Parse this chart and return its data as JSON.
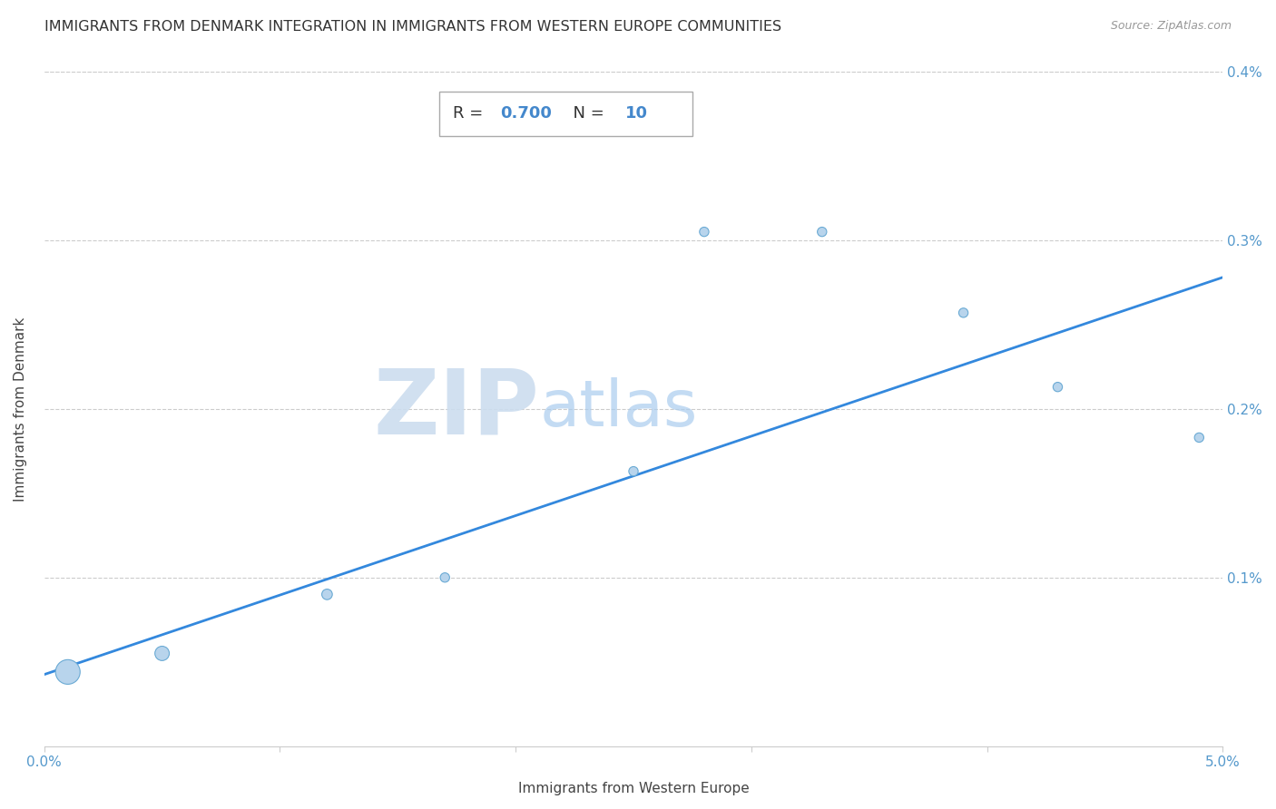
{
  "title": "IMMIGRANTS FROM DENMARK INTEGRATION IN IMMIGRANTS FROM WESTERN EUROPE COMMUNITIES",
  "source": "Source: ZipAtlas.com",
  "xlabel": "Immigrants from Western Europe",
  "ylabel": "Immigrants from Denmark",
  "R": 0.7,
  "N": 10,
  "xlim": [
    0.0,
    0.05
  ],
  "ylim": [
    0.0,
    0.004
  ],
  "xticks": [
    0.0,
    0.01,
    0.02,
    0.03,
    0.04,
    0.05
  ],
  "yticks": [
    0.001,
    0.002,
    0.003,
    0.004
  ],
  "scatter_x": [
    0.001,
    0.005,
    0.012,
    0.017,
    0.025,
    0.028,
    0.033,
    0.039,
    0.043,
    0.049
  ],
  "scatter_y": [
    0.00044,
    0.00055,
    0.0009,
    0.001,
    0.00163,
    0.00305,
    0.00305,
    0.00257,
    0.00213,
    0.00183
  ],
  "scatter_sizes": [
    380,
    130,
    70,
    55,
    55,
    55,
    55,
    55,
    55,
    55
  ],
  "scatter_color": "#b8d4ec",
  "scatter_edge_color": "#6aaad4",
  "line_color": "#3388dd",
  "line_start_x": 0.0,
  "line_start_y": 0.000425,
  "line_end_x": 0.05,
  "line_end_y": 0.00278,
  "watermark_zip": "ZIP",
  "watermark_atlas": "atlas",
  "watermark_color_zip": "#c8ddf0",
  "watermark_color_atlas": "#a8c4e0",
  "title_fontsize": 11.5,
  "axis_label_fontsize": 11,
  "tick_fontsize": 11,
  "annotation_fontsize": 13,
  "grid_color": "#cccccc",
  "grid_style": "--",
  "background_color": "#ffffff"
}
